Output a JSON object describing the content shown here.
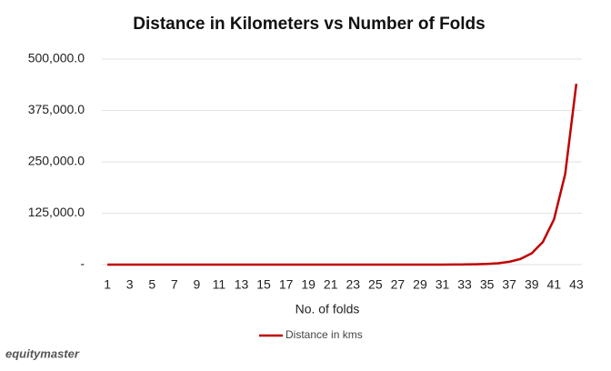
{
  "chart_data": {
    "type": "line",
    "title": "Distance in Kilometers vs Number of Folds",
    "x_label": "No. of folds",
    "watermark": "equitymaster",
    "categories": [
      1,
      null,
      3,
      null,
      5,
      null,
      7,
      null,
      9,
      null,
      11,
      null,
      13,
      null,
      15,
      null,
      17,
      null,
      19,
      null,
      21,
      null,
      23,
      null,
      25,
      null,
      27,
      null,
      29,
      null,
      31,
      null,
      33,
      null,
      35,
      null,
      37,
      null,
      39,
      null,
      41,
      null,
      43
    ],
    "series": [
      {
        "name": "Distance in kms",
        "color": "#c00000",
        "values": [
          0,
          0,
          0,
          0,
          0,
          0,
          0,
          0,
          0,
          0,
          0,
          0,
          0,
          0,
          0,
          0,
          0,
          0,
          0,
          0,
          0,
          0,
          0,
          1,
          2,
          3,
          7,
          13,
          27,
          54,
          107,
          215,
          429,
          859,
          1718,
          3436,
          6872,
          13744,
          27488,
          54976,
          109951,
          219902,
          439805
        ]
      }
    ],
    "ylim": [
      0,
      500000
    ],
    "yticks": [
      {
        "value": 0,
        "label": "-"
      },
      {
        "value": 125000,
        "label": "125,000.0"
      },
      {
        "value": 250000,
        "label": "250,000.0"
      },
      {
        "value": 375000,
        "label": "375,000.0"
      },
      {
        "value": 500000,
        "label": "500,000.0"
      }
    ],
    "grid": true,
    "legend": "bottom"
  }
}
